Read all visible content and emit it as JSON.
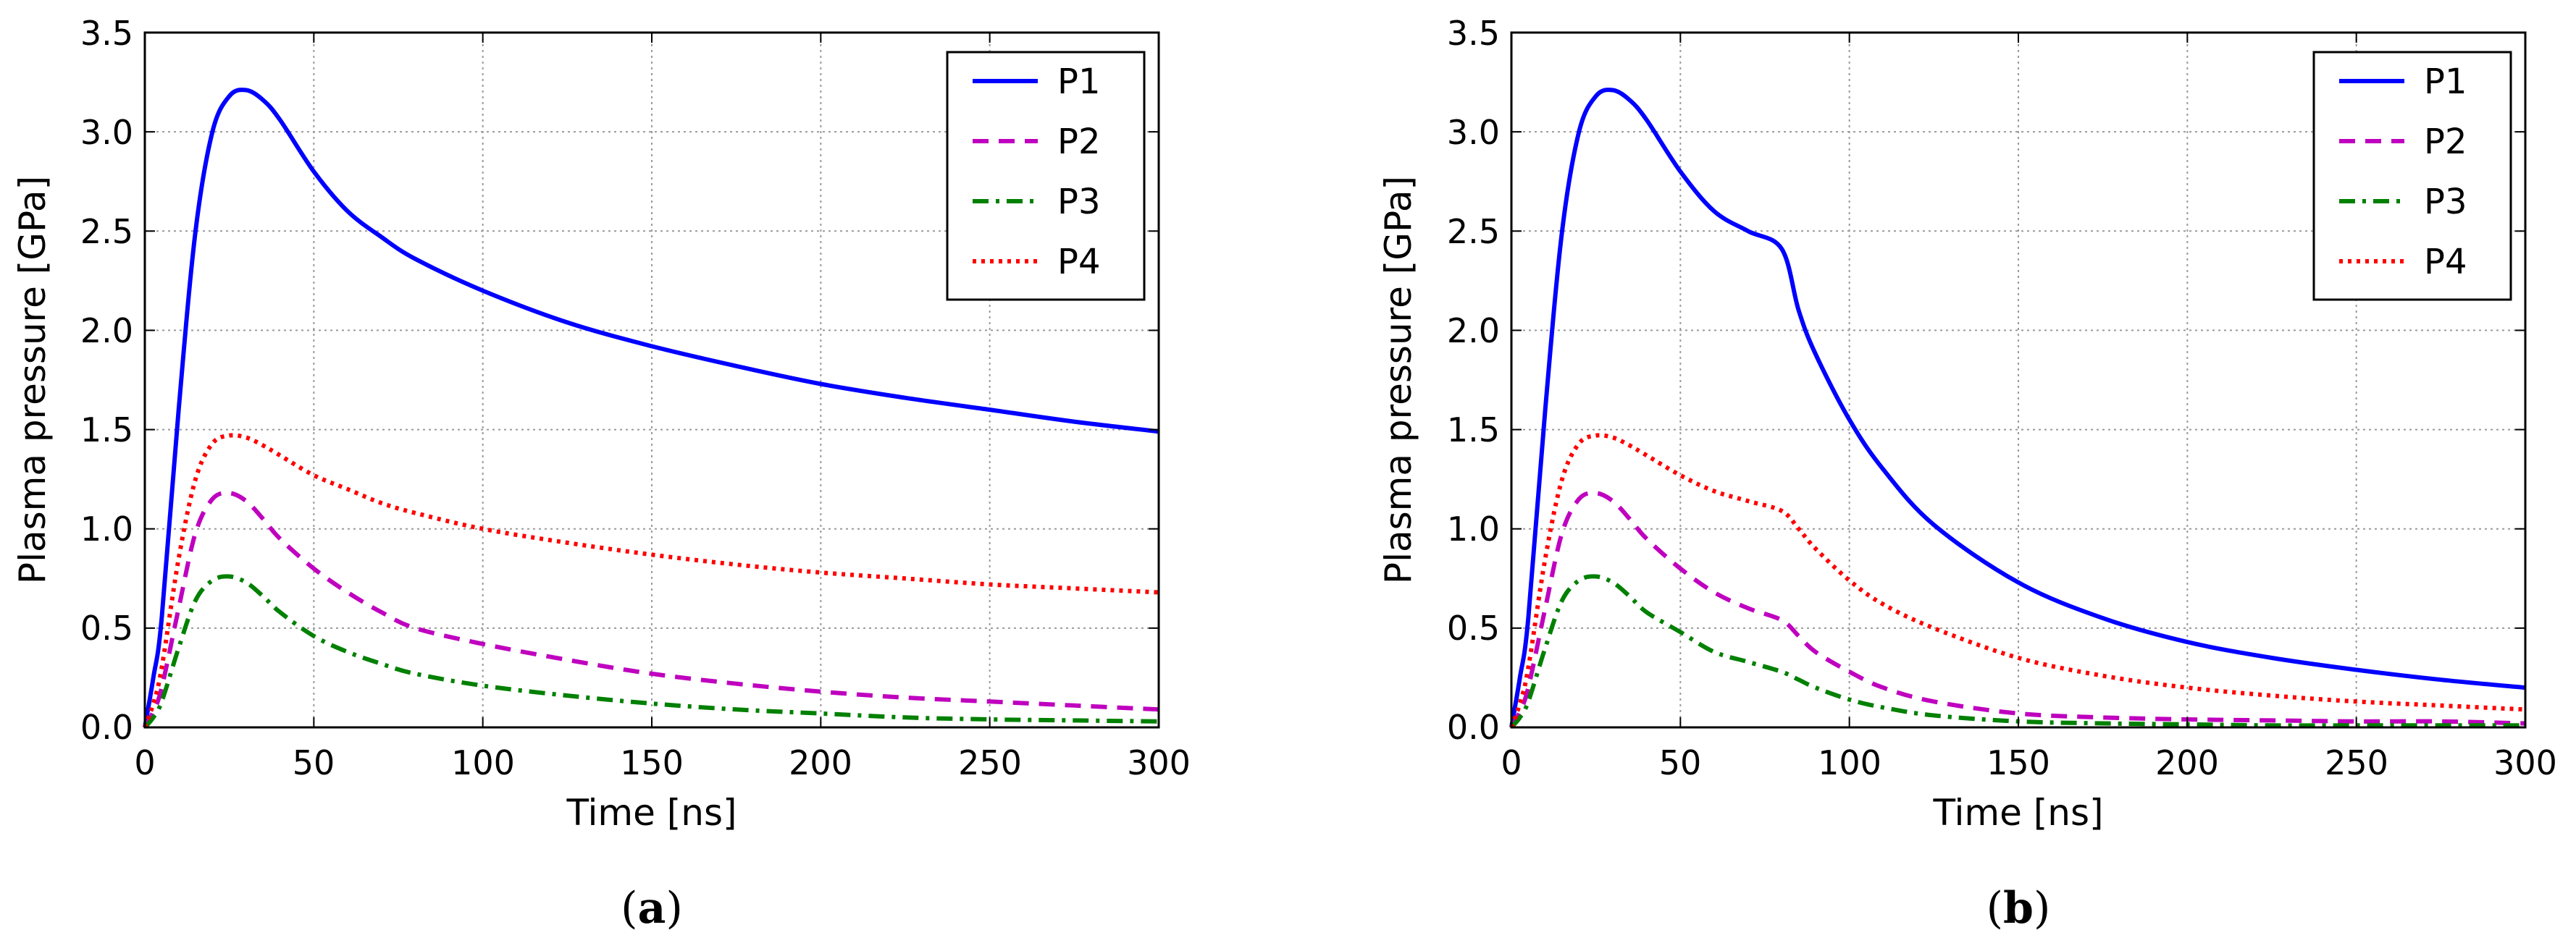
{
  "colors": {
    "P1": "#0000ff",
    "P2": "#bf00bf",
    "P3": "#008000",
    "P4": "#ff0000"
  },
  "chart_data": [
    {
      "type": "line",
      "panel": "a",
      "caption": "(a)",
      "caption_letter": "a",
      "xlabel": "Time [ns]",
      "ylabel": "Plasma pressure [GPa]",
      "xlim": [
        0,
        300
      ],
      "ylim": [
        0,
        3.5
      ],
      "xticks": [
        "0",
        "50",
        "100",
        "150",
        "200",
        "250",
        "300"
      ],
      "yticks": [
        "0.0",
        "0.5",
        "1.0",
        "1.5",
        "2.0",
        "2.5",
        "3.0",
        "3.5"
      ],
      "grid": true,
      "legend_position": "top-right",
      "series": [
        {
          "name": "P1",
          "style": "solid",
          "x": [
            0,
            2.5,
            5,
            10,
            15,
            20,
            25,
            30,
            35,
            40,
            50,
            60,
            70,
            80,
            100,
            125,
            150,
            175,
            200,
            225,
            250,
            275,
            300
          ],
          "y": [
            0,
            0.25,
            0.55,
            1.6,
            2.5,
            3.0,
            3.18,
            3.21,
            3.16,
            3.06,
            2.8,
            2.6,
            2.47,
            2.36,
            2.2,
            2.04,
            1.92,
            1.82,
            1.73,
            1.66,
            1.6,
            1.54,
            1.49
          ]
        },
        {
          "name": "P2",
          "style": "dashed",
          "x": [
            0,
            2.5,
            5,
            10,
            15,
            20,
            25,
            30,
            35,
            40,
            50,
            60,
            70,
            80,
            100,
            125,
            150,
            175,
            200,
            225,
            250,
            275,
            300
          ],
          "y": [
            0,
            0.08,
            0.2,
            0.6,
            0.98,
            1.15,
            1.18,
            1.14,
            1.05,
            0.95,
            0.8,
            0.68,
            0.58,
            0.5,
            0.42,
            0.34,
            0.27,
            0.22,
            0.18,
            0.15,
            0.13,
            0.11,
            0.09
          ]
        },
        {
          "name": "P3",
          "style": "dashdot",
          "x": [
            0,
            2.5,
            5,
            10,
            15,
            20,
            25,
            30,
            35,
            40,
            50,
            60,
            70,
            80,
            100,
            125,
            150,
            175,
            200,
            225,
            250,
            275,
            300
          ],
          "y": [
            0,
            0.05,
            0.13,
            0.4,
            0.64,
            0.74,
            0.76,
            0.73,
            0.66,
            0.58,
            0.46,
            0.38,
            0.32,
            0.27,
            0.21,
            0.16,
            0.12,
            0.09,
            0.07,
            0.05,
            0.04,
            0.035,
            0.03
          ]
        },
        {
          "name": "P4",
          "style": "dotted",
          "x": [
            0,
            2.5,
            5,
            10,
            15,
            20,
            25,
            30,
            35,
            40,
            50,
            60,
            70,
            80,
            100,
            125,
            150,
            175,
            200,
            225,
            250,
            275,
            300
          ],
          "y": [
            0,
            0.12,
            0.3,
            0.85,
            1.25,
            1.43,
            1.47,
            1.46,
            1.42,
            1.37,
            1.27,
            1.2,
            1.13,
            1.08,
            1.0,
            0.93,
            0.87,
            0.82,
            0.78,
            0.75,
            0.72,
            0.7,
            0.68
          ]
        }
      ]
    },
    {
      "type": "line",
      "panel": "b",
      "caption": "(b)",
      "caption_letter": "b",
      "xlabel": "Time [ns]",
      "ylabel": "Plasma pressure [GPa]",
      "xlim": [
        0,
        300
      ],
      "ylim": [
        0,
        3.5
      ],
      "xticks": [
        "0",
        "50",
        "100",
        "150",
        "200",
        "250",
        "300"
      ],
      "yticks": [
        "0.0",
        "0.5",
        "1.0",
        "1.5",
        "2.0",
        "2.5",
        "3.0",
        "3.5"
      ],
      "grid": true,
      "legend_position": "top-right",
      "series": [
        {
          "name": "P1",
          "style": "solid",
          "x": [
            0,
            2.5,
            5,
            10,
            15,
            20,
            25,
            30,
            35,
            40,
            50,
            60,
            70,
            80,
            85,
            90,
            100,
            110,
            125,
            150,
            175,
            200,
            225,
            250,
            275,
            300
          ],
          "y": [
            0,
            0.25,
            0.55,
            1.6,
            2.5,
            3.0,
            3.18,
            3.21,
            3.16,
            3.06,
            2.8,
            2.6,
            2.5,
            2.41,
            2.1,
            1.88,
            1.55,
            1.3,
            1.02,
            0.73,
            0.55,
            0.43,
            0.35,
            0.29,
            0.24,
            0.2
          ]
        },
        {
          "name": "P2",
          "style": "dashed",
          "x": [
            0,
            2.5,
            5,
            10,
            15,
            20,
            25,
            30,
            35,
            40,
            50,
            60,
            70,
            80,
            85,
            90,
            100,
            110,
            125,
            150,
            175,
            200,
            225,
            250,
            275,
            300
          ],
          "y": [
            0,
            0.08,
            0.2,
            0.6,
            0.98,
            1.15,
            1.18,
            1.14,
            1.05,
            0.95,
            0.8,
            0.68,
            0.6,
            0.54,
            0.46,
            0.38,
            0.28,
            0.2,
            0.13,
            0.07,
            0.05,
            0.04,
            0.035,
            0.03,
            0.03,
            0.02
          ]
        },
        {
          "name": "P3",
          "style": "dashdot",
          "x": [
            0,
            2.5,
            5,
            10,
            15,
            20,
            25,
            30,
            35,
            40,
            50,
            60,
            70,
            80,
            85,
            90,
            100,
            110,
            125,
            150,
            175,
            200,
            225,
            250,
            275,
            300
          ],
          "y": [
            0,
            0.05,
            0.13,
            0.4,
            0.64,
            0.74,
            0.76,
            0.73,
            0.66,
            0.58,
            0.48,
            0.38,
            0.33,
            0.28,
            0.24,
            0.2,
            0.14,
            0.1,
            0.06,
            0.03,
            0.02,
            0.015,
            0.01,
            0.01,
            0.01,
            0.01
          ]
        },
        {
          "name": "P4",
          "style": "dotted",
          "x": [
            0,
            2.5,
            5,
            10,
            15,
            20,
            25,
            30,
            35,
            40,
            50,
            60,
            70,
            80,
            85,
            90,
            100,
            110,
            125,
            150,
            175,
            200,
            225,
            250,
            275,
            300
          ],
          "y": [
            0,
            0.12,
            0.3,
            0.85,
            1.25,
            1.43,
            1.47,
            1.46,
            1.42,
            1.37,
            1.27,
            1.19,
            1.14,
            1.09,
            1.0,
            0.9,
            0.74,
            0.62,
            0.5,
            0.35,
            0.26,
            0.2,
            0.16,
            0.13,
            0.11,
            0.09
          ]
        }
      ]
    }
  ]
}
